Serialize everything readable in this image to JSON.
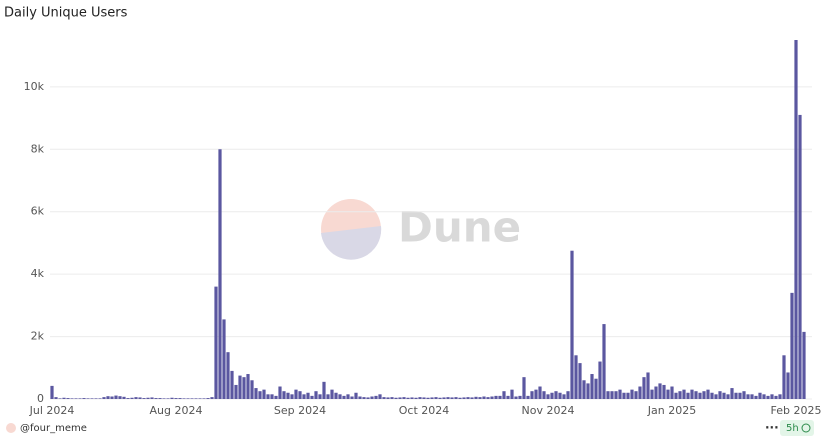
{
  "chart_data": {
    "type": "bar",
    "title": "Daily Unique Users",
    "watermark": "Dune",
    "color": "#5b57a0",
    "grid": true,
    "ylim": [
      0,
      11500
    ],
    "yticks": [
      0,
      {
        "value": 2000,
        "label": "2k"
      },
      {
        "value": 4000,
        "label": "4k"
      },
      {
        "value": 6000,
        "label": "6k"
      },
      {
        "value": 8000,
        "label": "8k"
      },
      {
        "value": 10000,
        "label": "10k"
      }
    ],
    "categories": [
      "Jul 2024",
      null,
      null,
      null,
      null,
      null,
      null,
      null,
      null,
      null,
      null,
      null,
      null,
      null,
      null,
      null,
      null,
      null,
      null,
      null,
      null,
      null,
      null,
      null,
      null,
      null,
      null,
      null,
      null,
      null,
      null,
      "Aug 2024",
      null,
      null,
      null,
      null,
      null,
      null,
      null,
      null,
      null,
      null,
      null,
      null,
      null,
      null,
      null,
      null,
      null,
      null,
      null,
      null,
      null,
      null,
      null,
      null,
      null,
      null,
      null,
      null,
      null,
      null,
      "Sep 2024",
      null,
      null,
      null,
      null,
      null,
      null,
      null,
      null,
      null,
      null,
      null,
      null,
      null,
      null,
      null,
      null,
      null,
      null,
      null,
      null,
      null,
      null,
      null,
      null,
      null,
      null,
      null,
      null,
      null,
      null,
      "Oct 2024",
      null,
      null,
      null,
      null,
      null,
      null,
      null,
      null,
      null,
      null,
      null,
      null,
      null,
      null,
      null,
      null,
      null,
      null,
      null,
      null,
      null,
      null,
      null,
      null,
      null,
      null,
      null,
      null,
      null,
      null,
      "Nov 2024",
      null,
      null,
      null,
      null,
      null,
      null,
      null,
      null,
      null,
      null,
      null,
      null,
      null,
      null,
      null,
      null,
      null,
      null,
      null,
      null,
      null,
      null,
      null,
      null,
      null,
      null,
      null,
      null,
      null,
      null,
      "Jan 2025",
      null,
      null,
      null,
      null,
      null,
      null,
      null,
      null,
      null,
      null,
      null,
      null,
      null,
      null,
      null,
      null,
      null,
      null,
      null,
      null,
      null,
      null,
      null,
      null,
      null,
      null,
      null,
      null,
      null,
      null,
      "Feb 2025",
      null,
      null
    ],
    "values": [
      420,
      60,
      20,
      40,
      30,
      20,
      20,
      20,
      30,
      20,
      20,
      20,
      20,
      60,
      90,
      80,
      110,
      90,
      70,
      30,
      40,
      60,
      50,
      30,
      40,
      50,
      30,
      30,
      20,
      20,
      40,
      30,
      30,
      20,
      20,
      20,
      20,
      20,
      20,
      30,
      60,
      3600,
      8000,
      2550,
      1500,
      900,
      450,
      750,
      700,
      800,
      600,
      350,
      250,
      300,
      150,
      150,
      100,
      400,
      250,
      200,
      150,
      300,
      250,
      150,
      200,
      100,
      250,
      150,
      550,
      150,
      300,
      200,
      150,
      100,
      150,
      80,
      200,
      80,
      60,
      50,
      80,
      100,
      150,
      60,
      50,
      60,
      40,
      50,
      60,
      40,
      50,
      40,
      60,
      50,
      40,
      50,
      60,
      40,
      50,
      60,
      50,
      60,
      40,
      50,
      60,
      50,
      70,
      60,
      80,
      60,
      80,
      100,
      100,
      250,
      100,
      300,
      80,
      100,
      700,
      100,
      250,
      300,
      400,
      250,
      150,
      200,
      250,
      200,
      150,
      250,
      4750,
      1400,
      1150,
      600,
      500,
      800,
      650,
      1200,
      2400,
      250,
      250,
      250,
      300,
      200,
      200,
      300,
      250,
      400,
      700,
      850,
      300,
      400,
      500,
      450,
      300,
      400,
      200,
      250,
      300,
      200,
      300,
      250,
      200,
      250,
      300,
      200,
      150,
      250,
      200,
      150,
      350,
      200,
      200,
      250,
      150,
      150,
      100,
      200,
      150,
      100,
      150,
      100,
      150,
      1400,
      850,
      3400,
      11500,
      9100,
      2150
    ]
  },
  "footer": {
    "author": "@four_meme",
    "age": "5h"
  }
}
